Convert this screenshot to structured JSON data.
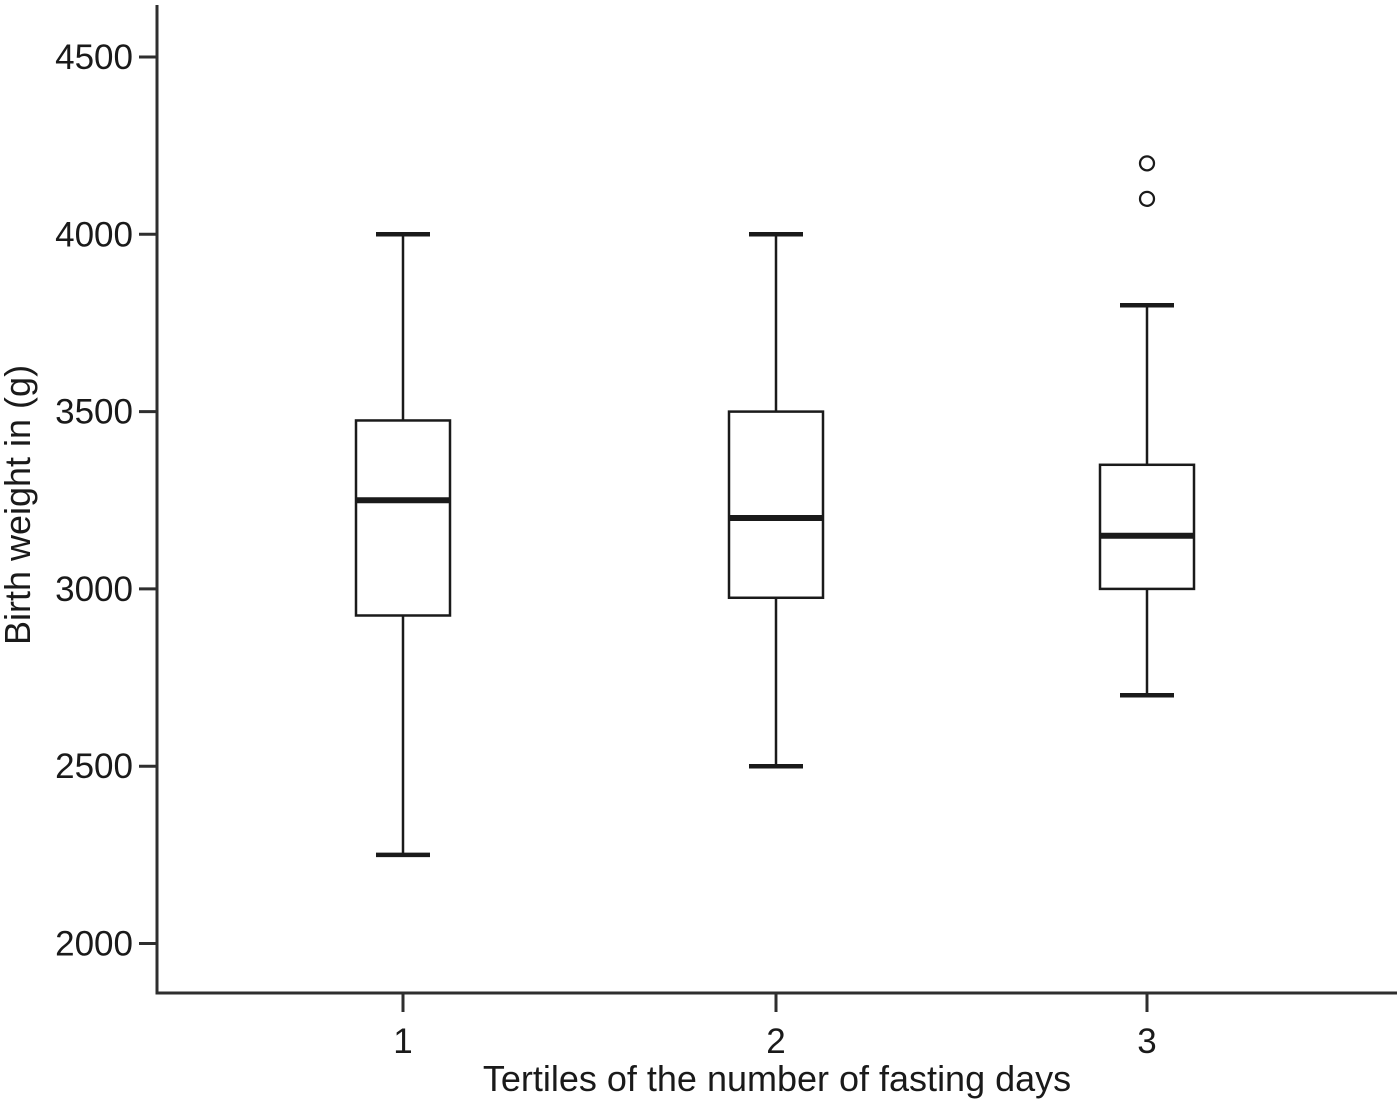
{
  "figure": {
    "background": "#ffffff",
    "line_color": "#1a1a1a",
    "axis_color": "#2e2e2e",
    "box_fill": "#ffffff"
  },
  "chart_data": {
    "type": "boxplot",
    "title": "",
    "xlabel": "Tertiles of the number of fasting days",
    "ylabel": "Birth weight in (g)",
    "ylim": [
      2000,
      4500
    ],
    "yticks": [
      2000,
      2500,
      3000,
      3500,
      4000,
      4500
    ],
    "categories": [
      "1",
      "2",
      "3"
    ],
    "grid": false,
    "legend": false,
    "series": [
      {
        "category": "1",
        "min": 2250,
        "q1": 2925,
        "median": 3250,
        "q3": 3475,
        "max": 4000,
        "outliers": []
      },
      {
        "category": "2",
        "min": 2500,
        "q1": 2975,
        "median": 3200,
        "q3": 3500,
        "max": 4000,
        "outliers": []
      },
      {
        "category": "3",
        "min": 2700,
        "q1": 3000,
        "median": 3150,
        "q3": 3350,
        "max": 3800,
        "outliers": [
          4100,
          4200
        ]
      }
    ]
  }
}
